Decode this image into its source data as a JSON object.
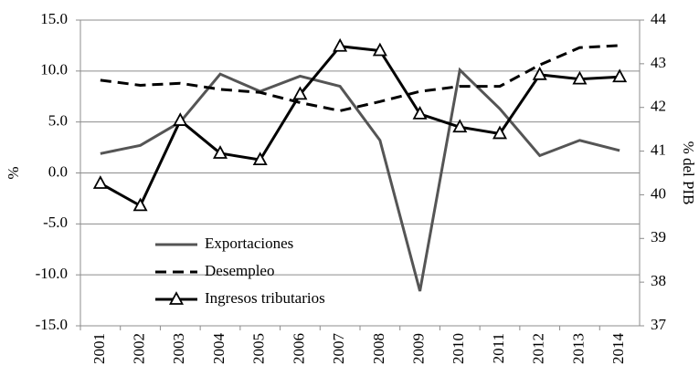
{
  "chart_data": {
    "type": "line",
    "ylabel": "%",
    "y2label": "% del PIB",
    "categories": [
      "2001",
      "2002",
      "2003",
      "2004",
      "2005",
      "2006",
      "2007",
      "2008",
      "2009",
      "2010",
      "2011",
      "2012",
      "2013",
      "2014"
    ],
    "series": [
      {
        "name": "Exportaciones",
        "color": "#555555",
        "values": [
          1.9,
          2.7,
          5.0,
          9.7,
          8.0,
          9.5,
          8.5,
          3.2,
          -11.6,
          10.1,
          6.3,
          1.7,
          3.2,
          2.2
        ]
      },
      {
        "name": "Desempleo",
        "color": "#000000",
        "dash": true,
        "values": [
          9.1,
          8.6,
          8.8,
          8.2,
          7.9,
          6.9,
          6.1,
          7.0,
          8.0,
          8.5,
          8.5,
          10.6,
          12.3,
          12.5
        ]
      },
      {
        "name": "Ingresos tributarios",
        "color": "#000000",
        "marker": "triangle",
        "axis": "y2",
        "values": [
          40.26,
          39.75,
          41.7,
          40.95,
          40.8,
          42.3,
          43.4,
          43.3,
          41.85,
          41.55,
          41.4,
          42.75,
          42.65,
          42.7
        ]
      }
    ],
    "ylim": [
      -15,
      15
    ],
    "yticks": [
      {
        "value": -15,
        "label": "-15.0"
      },
      {
        "value": -10,
        "label": "-10.0"
      },
      {
        "value": -5,
        "label": "-5.0"
      },
      {
        "value": 0,
        "label": "0.0"
      },
      {
        "value": 5,
        "label": "5.0"
      },
      {
        "value": 10,
        "label": "10.0"
      },
      {
        "value": 15,
        "label": "15.0"
      }
    ],
    "y2lim": [
      37,
      44
    ],
    "y2ticks": [
      37,
      38,
      39,
      40,
      41,
      42,
      43,
      44
    ],
    "grid": true,
    "legend": "lower-left"
  }
}
